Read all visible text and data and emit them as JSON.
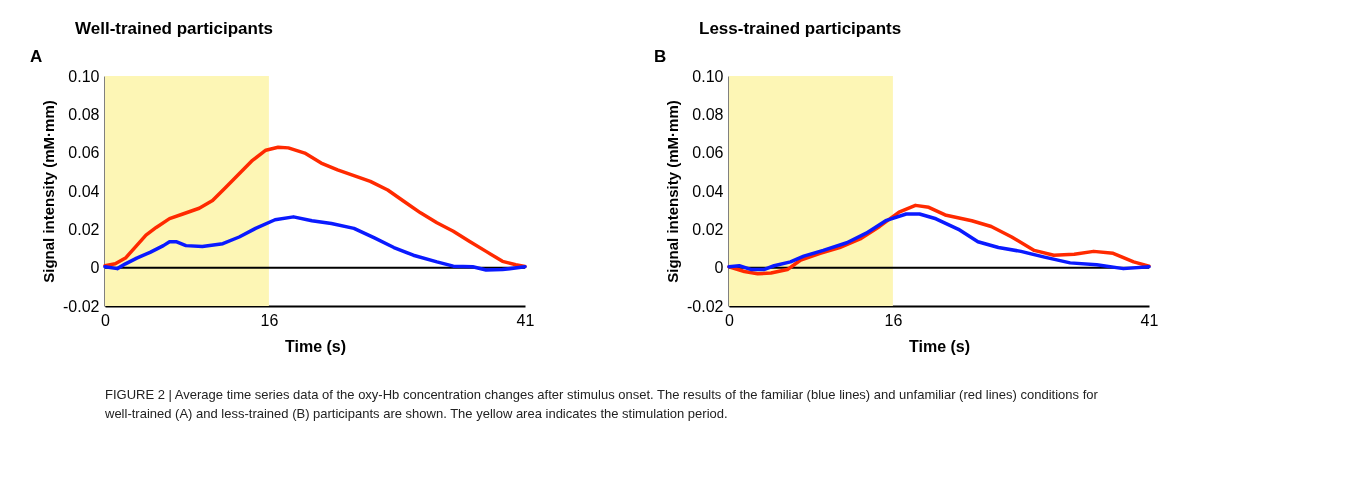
{
  "chart_data": [
    {
      "type": "line",
      "title": "Well-trained participants",
      "xlabel": "Time (s)",
      "ylabel": "Signal intensity (mM·mm)",
      "annotations": [
        "A",
        "FIGURE 2 | Average time series data of the oxy-Hb concentration changes after stimulus onset. The results of the familiar (blue lines) and unfamiliar (red lines) conditions for well-trained (A) and less-trained (B) participants are shown. The yellow area indicates the stimulation period."
      ],
      "series": [
        {
          "color": "#ff2a00",
          "x": [
            0,
            1.0,
            2.0,
            3.0,
            4.0,
            5.0,
            6.3,
            7.6,
            9.2,
            10.5,
            11.8,
            13.1,
            14.4,
            15.7,
            16.9,
            17.9,
            19.5,
            21.1,
            22.7,
            24.3,
            25.9,
            27.6,
            29.2,
            30.8,
            32.4,
            34.0,
            35.6,
            37.2,
            38.8,
            40.1,
            41
          ],
          "values": [
            0.001,
            0.002,
            0.005,
            0.011,
            0.017,
            0.021,
            0.0256,
            0.028,
            0.031,
            0.035,
            0.042,
            0.049,
            0.056,
            0.0613,
            0.0628,
            0.0625,
            0.0598,
            0.0546,
            0.051,
            0.048,
            0.045,
            0.0405,
            0.0345,
            0.0286,
            0.0234,
            0.019,
            0.0137,
            0.0085,
            0.0033,
            0.0015,
            0.0006
          ]
        },
        {
          "color": "#0a1aff",
          "x": [
            0,
            1.2,
            2.0,
            3.1,
            4.4,
            5.7,
            6.3,
            7.0,
            7.9,
            9.5,
            11.5,
            13.1,
            14.7,
            16.6,
            18.4,
            20.2,
            22.1,
            24.3,
            26.3,
            28.2,
            30.1,
            32.4,
            34.0,
            35.9,
            37.2,
            38.8,
            41
          ],
          "values": [
            0.0005,
            -0.0005,
            0.002,
            0.005,
            0.008,
            0.0115,
            0.0135,
            0.0135,
            0.0115,
            0.011,
            0.0125,
            0.016,
            0.0205,
            0.025,
            0.0265,
            0.0245,
            0.023,
            0.0205,
            0.0155,
            0.0105,
            0.0065,
            0.003,
            0.0008,
            0.0005,
            -0.0012,
            -0.001,
            0.0005
          ]
        }
      ],
      "xlim": [
        0,
        41
      ],
      "xticks": [
        0,
        16,
        41
      ],
      "ylim": [
        -0.02,
        0.1
      ],
      "yticks": [
        -0.02,
        0,
        0.02,
        0.04,
        0.06,
        0.08,
        {
          "value": 0.1,
          "label": "0.10"
        }
      ],
      "bands": [
        {
          "axis": "x",
          "from": 0,
          "to": 16,
          "color": "#fdf6b5"
        }
      ],
      "ref_lines": [
        {
          "axis": "y",
          "value": 0,
          "color": "#000000"
        }
      ],
      "grid": false
    },
    {
      "type": "line",
      "title": "Less-trained participants",
      "xlabel": "Time (s)",
      "ylabel": "Signal intensity (mM·mm)",
      "annotations": [
        "B"
      ],
      "series": [
        {
          "color": "#ff2a00",
          "x": [
            0,
            1.5,
            2.8,
            4.1,
            5.7,
            7.0,
            8.9,
            10.8,
            12.8,
            14.7,
            16.6,
            18.2,
            19.5,
            21.1,
            23.7,
            25.6,
            27.6,
            29.8,
            31.7,
            33.7,
            35.6,
            37.5,
            39.5,
            41
          ],
          "values": [
            0.0005,
            -0.002,
            -0.0032,
            -0.0028,
            -0.001,
            0.004,
            0.0075,
            0.0105,
            0.015,
            0.0215,
            0.029,
            0.0325,
            0.0315,
            0.0275,
            0.0245,
            0.0215,
            0.016,
            0.009,
            0.0065,
            0.007,
            0.0085,
            0.0075,
            0.003,
            0.0008
          ]
        },
        {
          "color": "#0a1aff",
          "x": [
            0,
            1.0,
            2.2,
            3.4,
            4.4,
            6.0,
            7.3,
            9.2,
            11.5,
            13.4,
            15.3,
            17.3,
            18.6,
            20.2,
            22.4,
            24.3,
            26.3,
            28.5,
            30.8,
            33.3,
            35.9,
            38.5,
            41
          ],
          "values": [
            0.0005,
            0.001,
            -0.001,
            -0.001,
            0.001,
            0.003,
            0.006,
            0.009,
            0.013,
            0.018,
            0.0245,
            0.028,
            0.028,
            0.0255,
            0.02,
            0.0135,
            0.0105,
            0.0085,
            0.0055,
            0.0025,
            0.0015,
            -0.0005,
            0.0005
          ]
        }
      ],
      "xlim": [
        0,
        41
      ],
      "xticks": [
        0,
        16,
        41
      ],
      "ylim": [
        -0.02,
        0.1
      ],
      "yticks": [
        -0.02,
        0,
        0.02,
        0.04,
        0.06,
        0.08,
        {
          "value": 0.1,
          "label": "0.10"
        }
      ],
      "bands": [
        {
          "axis": "x",
          "from": 0,
          "to": 16,
          "color": "#fdf6b5"
        }
      ],
      "ref_lines": [
        {
          "axis": "y",
          "value": 0,
          "color": "#000000"
        }
      ],
      "grid": false
    }
  ]
}
